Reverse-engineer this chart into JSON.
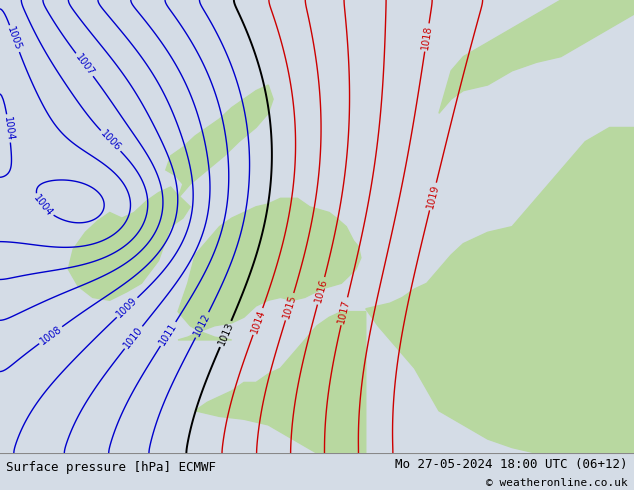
{
  "title_left": "Surface pressure [hPa] ECMWF",
  "title_right": "Mo 27-05-2024 18:00 UTC (06+12)",
  "copyright": "© weatheronline.co.uk",
  "bg_color": "#d4dce6",
  "land_color": "#b8d8a0",
  "isobar_blue_color": "#0000cc",
  "isobar_black_color": "#000000",
  "isobar_red_color": "#cc0000",
  "label_fontsize": 7,
  "footer_fontsize": 9,
  "pressure_levels_blue": [
    1004,
    1005,
    1006,
    1007,
    1008,
    1009,
    1010,
    1011,
    1012
  ],
  "pressure_levels_black": [
    1013
  ],
  "pressure_levels_red": [
    1014,
    1015,
    1016,
    1017,
    1018,
    1019
  ],
  "lon_min": -13,
  "lon_max": 13,
  "lat_min": 46,
  "lat_max": 62
}
